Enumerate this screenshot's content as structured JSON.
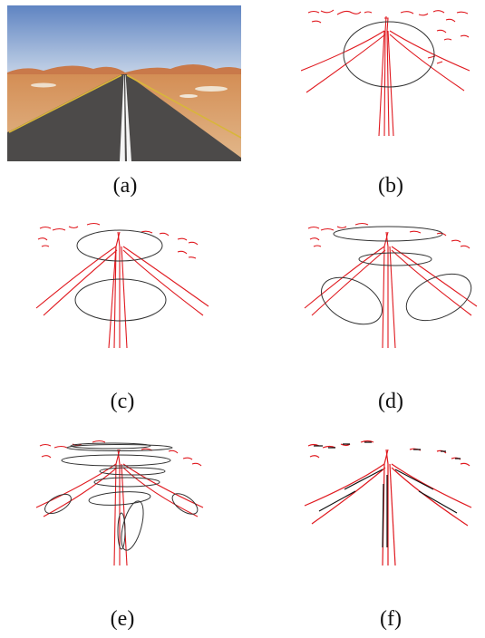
{
  "figure": {
    "panels": [
      {
        "id": "a",
        "label": "(a)",
        "content": "photograph"
      },
      {
        "id": "b",
        "label": "(b)",
        "content": "edge-map-1-ellipse"
      },
      {
        "id": "c",
        "label": "(c)",
        "content": "edge-map-2-ellipses"
      },
      {
        "id": "d",
        "label": "(d)",
        "content": "edge-map-4-ellipses"
      },
      {
        "id": "e",
        "label": "(e)",
        "content": "edge-map-many-ellipses"
      },
      {
        "id": "f",
        "label": "(f)",
        "content": "edge-map-fitted-segments"
      }
    ]
  },
  "colors": {
    "edge": "#e0191f",
    "ellipse": "#333333",
    "fitted": "#111111",
    "sky_top": "#6d8fc8",
    "sky_bottom": "#b9cbe3",
    "sand": "#d9995a",
    "road": "#4e4c4b",
    "lane_white": "#f2f2f2",
    "lane_yellow": "#e3c23a"
  }
}
